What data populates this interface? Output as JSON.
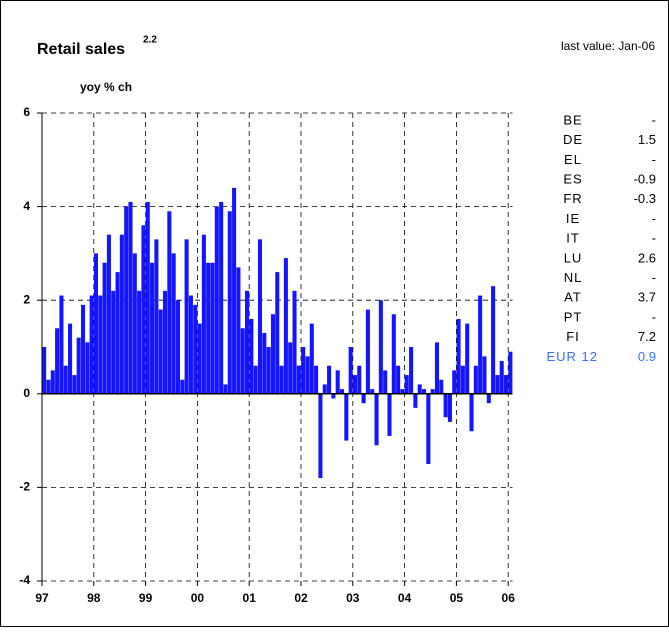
{
  "chart_data": {
    "type": "bar",
    "title": "Retail sales",
    "title_superscript": "2.2",
    "subtitle": "last value: Jan-06",
    "y_label": "yoy % ch",
    "color": "#1414ff",
    "grid": true,
    "ylim": [
      -4,
      6
    ],
    "yticks": [
      -4,
      -2,
      0,
      2,
      4,
      6
    ],
    "categories": [
      "97",
      null,
      null,
      null,
      null,
      null,
      null,
      null,
      null,
      null,
      null,
      null,
      "98",
      null,
      null,
      null,
      null,
      null,
      null,
      null,
      null,
      null,
      null,
      null,
      "99",
      null,
      null,
      null,
      null,
      null,
      null,
      null,
      null,
      null,
      null,
      null,
      "00",
      null,
      null,
      null,
      null,
      null,
      null,
      null,
      null,
      null,
      null,
      null,
      "01",
      null,
      null,
      null,
      null,
      null,
      null,
      null,
      null,
      null,
      null,
      null,
      "02",
      null,
      null,
      null,
      null,
      null,
      null,
      null,
      null,
      null,
      null,
      null,
      "03",
      null,
      null,
      null,
      null,
      null,
      null,
      null,
      null,
      null,
      null,
      null,
      "04",
      null,
      null,
      null,
      null,
      null,
      null,
      null,
      null,
      null,
      null,
      null,
      "05",
      null,
      null,
      null,
      null,
      null,
      null,
      null,
      null,
      null,
      null,
      null,
      "06"
    ],
    "values": [
      1.0,
      0.3,
      0.5,
      1.4,
      2.1,
      0.6,
      1.5,
      0.4,
      1.2,
      1.9,
      1.1,
      2.1,
      3.0,
      2.1,
      2.8,
      3.4,
      2.2,
      2.6,
      3.4,
      4.0,
      4.1,
      3.0,
      2.2,
      3.6,
      4.1,
      2.8,
      3.3,
      1.8,
      2.2,
      3.9,
      3.0,
      2.0,
      0.3,
      3.3,
      2.1,
      1.9,
      1.5,
      3.4,
      2.8,
      2.8,
      4.0,
      4.1,
      0.2,
      3.9,
      4.4,
      2.7,
      1.4,
      2.2,
      1.6,
      0.6,
      3.3,
      1.3,
      1.0,
      1.7,
      2.6,
      0.6,
      2.9,
      1.1,
      2.2,
      0.6,
      1.0,
      0.8,
      1.5,
      0.6,
      -1.8,
      0.2,
      0.6,
      -0.1,
      0.5,
      0.1,
      -1.0,
      1.0,
      0.4,
      0.6,
      -0.2,
      1.8,
      0.1,
      -1.1,
      2.0,
      0.5,
      -0.9,
      1.7,
      0.6,
      0.1,
      0.4,
      1.0,
      -0.3,
      0.2,
      0.1,
      -1.5,
      0.1,
      1.1,
      0.3,
      -0.5,
      -0.6,
      0.5,
      1.6,
      0.6,
      1.5,
      -0.8,
      0.6,
      2.1,
      0.8,
      -0.2,
      2.3,
      0.4,
      0.7,
      0.4,
      0.9
    ]
  },
  "side_table": {
    "rows": [
      [
        "BE",
        "-"
      ],
      [
        "DE",
        "1.5"
      ],
      [
        "EL",
        "-"
      ],
      [
        "ES",
        "-0.9"
      ],
      [
        "FR",
        "-0.3"
      ],
      [
        "IE",
        "-"
      ],
      [
        "IT",
        "-"
      ],
      [
        "LU",
        "2.6"
      ],
      [
        "NL",
        "-"
      ],
      [
        "AT",
        "3.7"
      ],
      [
        "PT",
        "-"
      ],
      [
        "FI",
        "7.2"
      ],
      [
        "EUR 12",
        "0.9"
      ]
    ]
  }
}
